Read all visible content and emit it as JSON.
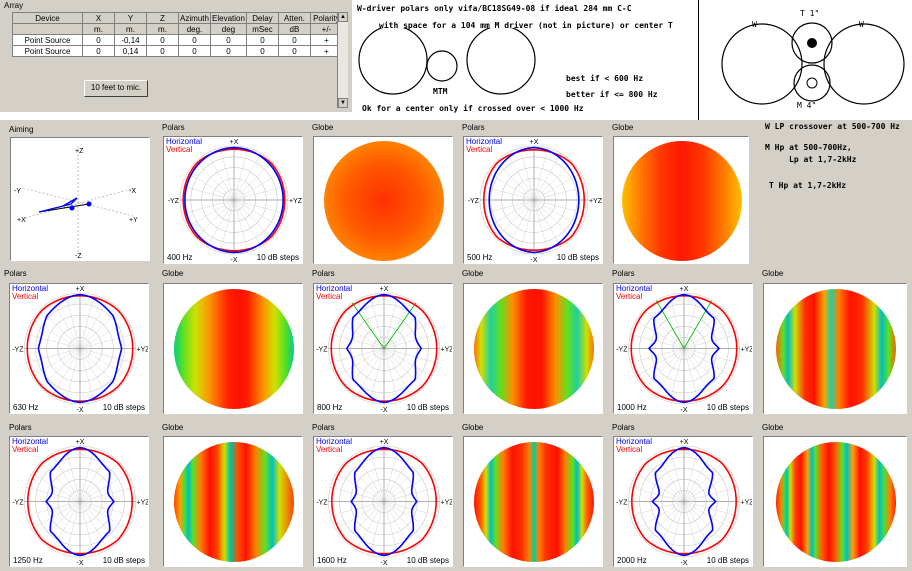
{
  "array": {
    "title": "Array",
    "columns": [
      {
        "label": "Device",
        "unit": ""
      },
      {
        "label": "X",
        "unit": "m."
      },
      {
        "label": "Y",
        "unit": "m."
      },
      {
        "label": "Z",
        "unit": "m."
      },
      {
        "label": "Azimuth",
        "unit": "deg."
      },
      {
        "label": "Elevation",
        "unit": "deg"
      },
      {
        "label": "Delay",
        "unit": "mSec"
      },
      {
        "label": "Atten.",
        "unit": "dB"
      },
      {
        "label": "Polarity",
        "unit": "+/-"
      }
    ],
    "rows": [
      [
        "Point Source",
        "0",
        "-0,14",
        "0",
        "0",
        "0",
        "0",
        "0",
        "+"
      ],
      [
        "Point Source",
        "0",
        "0,14",
        "0",
        "0",
        "0",
        "0",
        "0",
        "+"
      ]
    ],
    "button_label": "10 feet to mic."
  },
  "notes": {
    "line1": "W-driver polars only  vifa/BC18SG49-08   if ideal   284 mm C-C",
    "line2": "with space for a 104 mm M driver (not in picture)   or center T",
    "mtm": "MTM",
    "best": "best if < 600 Hz",
    "better": "better if <= 800 Hz",
    "center": "Ok for a center only if crossed over < 1000 Hz",
    "w_lp": "W LP crossover at 500-700 Hz",
    "m_hp": "M Hp at 500-700Hz,",
    "m_lp": "Lp at 1,7-2kHz",
    "t_hp": "T Hp at 1,7-2kHz",
    "w_left": "W",
    "w_right": "W",
    "t1": "T 1\"",
    "m4": "M 4\""
  },
  "aiming": {
    "title": "Aiming",
    "labels": [
      "+Z",
      "-Y",
      "-X",
      "+X",
      "+Y",
      "-Z"
    ]
  },
  "common": {
    "polars_title": "Polars",
    "globe_title": "Globe",
    "horizontal": "Horizontal",
    "vertical": "Vertical",
    "steps": "10 dB steps",
    "plus_x": "+X",
    "minus_x": "-X",
    "plus_yz": "+YZ",
    "minus_yz": "-YZ"
  },
  "colors": {
    "horizontal": "#0000ff",
    "vertical": "#ff0000",
    "lobe_marker": "#00c000",
    "panel": "#d4d0c8"
  },
  "polar_panels": [
    {
      "freq": "400 Hz",
      "cutoff_deg": null
    },
    {
      "freq": "500 Hz",
      "cutoff_deg": null
    },
    {
      "freq": "630 Hz",
      "cutoff_deg": null
    },
    {
      "freq": "800 Hz",
      "cutoff_deg": 35
    },
    {
      "freq": "1000 Hz",
      "cutoff_deg": 30
    },
    {
      "freq": "1250 Hz",
      "cutoff_deg": null
    },
    {
      "freq": "1600 Hz",
      "cutoff_deg": null
    },
    {
      "freq": "2000 Hz",
      "cutoff_deg": null
    }
  ]
}
